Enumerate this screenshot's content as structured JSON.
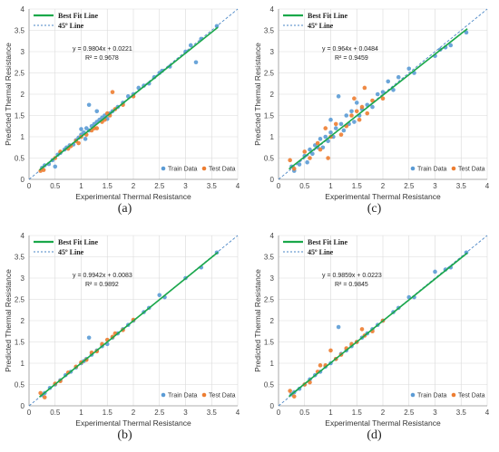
{
  "colors": {
    "train": "#5b9bd5",
    "test": "#ed7d31",
    "fit": "#1aa84a",
    "diag": "#4a86c6",
    "grid": "#d9d9d9"
  },
  "chart_data": [
    {
      "type": "scatter",
      "caption": "(a)",
      "xlabel": "Experimental Thermal Resistance",
      "ylabel": "Predicted Thermal Resistance",
      "xlim": [
        0,
        4
      ],
      "ylim": [
        0,
        4
      ],
      "xticks": [
        "0",
        "0.5",
        "1",
        "1.5",
        "2",
        "2.5",
        "3",
        "3.5",
        "4"
      ],
      "yticks": [
        "0",
        "0.5",
        "1",
        "1.5",
        "2",
        "2.5",
        "3",
        "3.5",
        "4"
      ],
      "grid": true,
      "legend_top": [
        "Best Fit Line",
        "45º Line"
      ],
      "legend_bottom": [
        "Train Data",
        "Test Data"
      ],
      "equation": "y = 0.9804x + 0.0221",
      "r2": "R² = 0.9678",
      "fit": {
        "slope": 0.9804,
        "intercept": 0.0221
      },
      "series": [
        {
          "name": "Train Data",
          "points": [
            [
              0.25,
              0.27
            ],
            [
              0.3,
              0.33
            ],
            [
              0.38,
              0.36
            ],
            [
              0.45,
              0.45
            ],
            [
              0.5,
              0.3
            ],
            [
              0.55,
              0.58
            ],
            [
              0.6,
              0.62
            ],
            [
              0.68,
              0.7
            ],
            [
              0.72,
              0.75
            ],
            [
              0.78,
              0.8
            ],
            [
              0.85,
              0.82
            ],
            [
              0.9,
              0.92
            ],
            [
              0.95,
              0.98
            ],
            [
              1.0,
              1.05
            ],
            [
              1.0,
              1.18
            ],
            [
              1.05,
              1.1
            ],
            [
              1.08,
              0.95
            ],
            [
              1.1,
              1.2
            ],
            [
              1.15,
              1.15
            ],
            [
              1.15,
              1.75
            ],
            [
              1.2,
              1.25
            ],
            [
              1.25,
              1.3
            ],
            [
              1.3,
              1.35
            ],
            [
              1.3,
              1.6
            ],
            [
              1.35,
              1.4
            ],
            [
              1.4,
              1.45
            ],
            [
              1.45,
              1.5
            ],
            [
              1.5,
              1.42
            ],
            [
              1.55,
              1.55
            ],
            [
              1.6,
              1.6
            ],
            [
              1.7,
              1.7
            ],
            [
              1.8,
              1.8
            ],
            [
              1.9,
              1.95
            ],
            [
              2.0,
              2.0
            ],
            [
              2.1,
              2.15
            ],
            [
              2.2,
              2.2
            ],
            [
              2.3,
              2.25
            ],
            [
              2.4,
              2.4
            ],
            [
              2.5,
              2.5
            ],
            [
              2.55,
              2.55
            ],
            [
              2.7,
              2.65
            ],
            [
              3.0,
              3.0
            ],
            [
              3.1,
              3.15
            ],
            [
              3.2,
              2.75
            ],
            [
              3.3,
              3.3
            ],
            [
              3.6,
              3.6
            ]
          ]
        },
        {
          "name": "Test Data",
          "points": [
            [
              0.22,
              0.2
            ],
            [
              0.28,
              0.22
            ],
            [
              0.5,
              0.5
            ],
            [
              0.6,
              0.65
            ],
            [
              0.75,
              0.72
            ],
            [
              0.8,
              0.78
            ],
            [
              0.9,
              0.9
            ],
            [
              0.95,
              0.85
            ],
            [
              1.0,
              1.0
            ],
            [
              1.1,
              1.05
            ],
            [
              1.2,
              1.15
            ],
            [
              1.25,
              1.2
            ],
            [
              1.3,
              1.2
            ],
            [
              1.4,
              1.35
            ],
            [
              1.45,
              1.4
            ],
            [
              1.5,
              1.55
            ],
            [
              1.55,
              1.5
            ],
            [
              1.6,
              2.05
            ],
            [
              1.65,
              1.65
            ],
            [
              1.8,
              1.75
            ],
            [
              2.0,
              1.95
            ]
          ]
        }
      ]
    },
    {
      "type": "scatter",
      "caption": "(c)",
      "xlabel": "Experimental Thermal Resistance",
      "ylabel": "Predicted Thermal Resistance",
      "xlim": [
        0,
        4
      ],
      "ylim": [
        0,
        4
      ],
      "xticks": [
        "0",
        "0.5",
        "1",
        "1.5",
        "2",
        "2.5",
        "3",
        "3.5",
        "4"
      ],
      "yticks": [
        "0",
        "0.5",
        "1",
        "1.5",
        "2",
        "2.5",
        "3",
        "3.5",
        "4"
      ],
      "grid": true,
      "legend_top": [
        "Best Fit Line",
        "45º Line"
      ],
      "legend_bottom": [
        "Train Data",
        "Test Data"
      ],
      "equation": "y = 0.964x + 0.0484",
      "r2": "R² = 0.9459",
      "fit": {
        "slope": 0.964,
        "intercept": 0.0484
      },
      "series": [
        {
          "name": "Train Data",
          "points": [
            [
              0.25,
              0.3
            ],
            [
              0.3,
              0.2
            ],
            [
              0.4,
              0.35
            ],
            [
              0.5,
              0.55
            ],
            [
              0.55,
              0.4
            ],
            [
              0.6,
              0.7
            ],
            [
              0.65,
              0.6
            ],
            [
              0.7,
              0.8
            ],
            [
              0.75,
              0.75
            ],
            [
              0.8,
              0.95
            ],
            [
              0.85,
              0.75
            ],
            [
              0.9,
              1.0
            ],
            [
              0.95,
              0.9
            ],
            [
              1.0,
              1.1
            ],
            [
              1.0,
              1.4
            ],
            [
              1.05,
              1.0
            ],
            [
              1.1,
              1.2
            ],
            [
              1.15,
              1.95
            ],
            [
              1.2,
              1.3
            ],
            [
              1.25,
              1.15
            ],
            [
              1.3,
              1.5
            ],
            [
              1.35,
              1.3
            ],
            [
              1.4,
              1.6
            ],
            [
              1.45,
              1.35
            ],
            [
              1.5,
              1.8
            ],
            [
              1.55,
              1.5
            ],
            [
              1.6,
              1.65
            ],
            [
              1.7,
              1.75
            ],
            [
              1.8,
              1.7
            ],
            [
              1.9,
              2.0
            ],
            [
              2.0,
              2.05
            ],
            [
              2.1,
              2.3
            ],
            [
              2.2,
              2.1
            ],
            [
              2.3,
              2.4
            ],
            [
              2.5,
              2.6
            ],
            [
              2.6,
              2.5
            ],
            [
              3.0,
              2.9
            ],
            [
              3.1,
              3.05
            ],
            [
              3.2,
              3.1
            ],
            [
              3.3,
              3.15
            ],
            [
              3.6,
              3.45
            ]
          ]
        },
        {
          "name": "Test Data",
          "points": [
            [
              0.22,
              0.45
            ],
            [
              0.3,
              0.25
            ],
            [
              0.5,
              0.65
            ],
            [
              0.6,
              0.5
            ],
            [
              0.75,
              0.85
            ],
            [
              0.8,
              0.7
            ],
            [
              0.9,
              1.2
            ],
            [
              0.95,
              0.5
            ],
            [
              1.0,
              1.0
            ],
            [
              1.1,
              1.3
            ],
            [
              1.2,
              1.05
            ],
            [
              1.3,
              1.25
            ],
            [
              1.4,
              1.5
            ],
            [
              1.45,
              1.9
            ],
            [
              1.5,
              1.6
            ],
            [
              1.55,
              1.4
            ],
            [
              1.6,
              1.7
            ],
            [
              1.65,
              2.15
            ],
            [
              1.7,
              1.55
            ],
            [
              1.8,
              1.85
            ],
            [
              2.0,
              1.9
            ]
          ]
        }
      ]
    },
    {
      "type": "scatter",
      "caption": "(b)",
      "xlabel": "Experimental Thermal Resistance",
      "ylabel": "Predicted Thermal Resistance",
      "xlim": [
        0,
        4
      ],
      "ylim": [
        0,
        4
      ],
      "xticks": [
        "0",
        "0.5",
        "1",
        "1.5",
        "2",
        "2.5",
        "3",
        "3.5",
        "4"
      ],
      "yticks": [
        "0",
        "0.5",
        "1",
        "1.5",
        "2",
        "2.5",
        "3",
        "3.5",
        "4"
      ],
      "grid": true,
      "legend_top": [
        "Best Fit Line",
        "45º Line"
      ],
      "legend_bottom": [
        "Train Data",
        "Test Data"
      ],
      "equation": "y = 0.9942x + 0.0083",
      "r2": "R² = 0.9892",
      "fit": {
        "slope": 0.9942,
        "intercept": 0.0083
      },
      "series": [
        {
          "name": "Train Data",
          "points": [
            [
              0.25,
              0.25
            ],
            [
              0.3,
              0.3
            ],
            [
              0.4,
              0.42
            ],
            [
              0.5,
              0.5
            ],
            [
              0.6,
              0.6
            ],
            [
              0.7,
              0.72
            ],
            [
              0.8,
              0.8
            ],
            [
              0.9,
              0.9
            ],
            [
              1.0,
              1.0
            ],
            [
              1.05,
              1.05
            ],
            [
              1.1,
              1.1
            ],
            [
              1.15,
              1.6
            ],
            [
              1.2,
              1.2
            ],
            [
              1.3,
              1.3
            ],
            [
              1.4,
              1.4
            ],
            [
              1.5,
              1.45
            ],
            [
              1.6,
              1.6
            ],
            [
              1.7,
              1.7
            ],
            [
              1.8,
              1.8
            ],
            [
              1.9,
              1.9
            ],
            [
              2.0,
              2.0
            ],
            [
              2.2,
              2.2
            ],
            [
              2.3,
              2.3
            ],
            [
              2.5,
              2.6
            ],
            [
              2.6,
              2.55
            ],
            [
              3.0,
              3.0
            ],
            [
              3.3,
              3.25
            ],
            [
              3.6,
              3.6
            ]
          ]
        },
        {
          "name": "Test Data",
          "points": [
            [
              0.22,
              0.3
            ],
            [
              0.3,
              0.2
            ],
            [
              0.5,
              0.52
            ],
            [
              0.6,
              0.58
            ],
            [
              0.75,
              0.78
            ],
            [
              0.9,
              0.92
            ],
            [
              1.0,
              1.02
            ],
            [
              1.1,
              1.08
            ],
            [
              1.2,
              1.25
            ],
            [
              1.3,
              1.28
            ],
            [
              1.4,
              1.45
            ],
            [
              1.5,
              1.55
            ],
            [
              1.6,
              1.62
            ],
            [
              1.65,
              1.7
            ],
            [
              1.8,
              1.78
            ],
            [
              2.0,
              2.02
            ]
          ]
        }
      ]
    },
    {
      "type": "scatter",
      "caption": "(d)",
      "xlabel": "Experimental Thermal Resistance",
      "ylabel": "Predicted Thermal Resistance",
      "xlim": [
        0,
        4
      ],
      "ylim": [
        0,
        4
      ],
      "xticks": [
        "0",
        "0.5",
        "1",
        "1.5",
        "2",
        "2.5",
        "3",
        "3.5",
        "4"
      ],
      "yticks": [
        "0",
        "0.5",
        "1",
        "1.5",
        "2",
        "2.5",
        "3",
        "3.5",
        "4"
      ],
      "grid": true,
      "legend_top": [
        "Best Fit Line",
        "45º Line"
      ],
      "legend_bottom": [
        "Train Data",
        "Test Data"
      ],
      "equation": "y = 0.9859x + 0.0223",
      "r2": "R² = 0.9845",
      "fit": {
        "slope": 0.9859,
        "intercept": 0.0223
      },
      "series": [
        {
          "name": "Train Data",
          "points": [
            [
              0.25,
              0.27
            ],
            [
              0.3,
              0.32
            ],
            [
              0.4,
              0.4
            ],
            [
              0.5,
              0.5
            ],
            [
              0.6,
              0.62
            ],
            [
              0.7,
              0.72
            ],
            [
              0.8,
              0.8
            ],
            [
              0.9,
              0.92
            ],
            [
              1.0,
              1.0
            ],
            [
              1.1,
              1.1
            ],
            [
              1.15,
              1.85
            ],
            [
              1.2,
              1.22
            ],
            [
              1.3,
              1.3
            ],
            [
              1.4,
              1.4
            ],
            [
              1.5,
              1.5
            ],
            [
              1.6,
              1.6
            ],
            [
              1.7,
              1.7
            ],
            [
              1.8,
              1.8
            ],
            [
              1.9,
              1.9
            ],
            [
              2.0,
              2.0
            ],
            [
              2.2,
              2.2
            ],
            [
              2.3,
              2.3
            ],
            [
              2.5,
              2.55
            ],
            [
              2.6,
              2.55
            ],
            [
              3.0,
              3.15
            ],
            [
              3.2,
              3.2
            ],
            [
              3.3,
              3.25
            ],
            [
              3.6,
              3.6
            ]
          ]
        },
        {
          "name": "Test Data",
          "points": [
            [
              0.22,
              0.35
            ],
            [
              0.3,
              0.22
            ],
            [
              0.5,
              0.5
            ],
            [
              0.6,
              0.55
            ],
            [
              0.75,
              0.8
            ],
            [
              0.8,
              0.95
            ],
            [
              0.9,
              0.95
            ],
            [
              1.0,
              1.3
            ],
            [
              1.1,
              1.1
            ],
            [
              1.2,
              1.2
            ],
            [
              1.3,
              1.35
            ],
            [
              1.4,
              1.45
            ],
            [
              1.5,
              1.5
            ],
            [
              1.6,
              1.8
            ],
            [
              1.65,
              1.65
            ],
            [
              1.8,
              1.75
            ],
            [
              2.0,
              2.0
            ]
          ]
        }
      ]
    }
  ]
}
